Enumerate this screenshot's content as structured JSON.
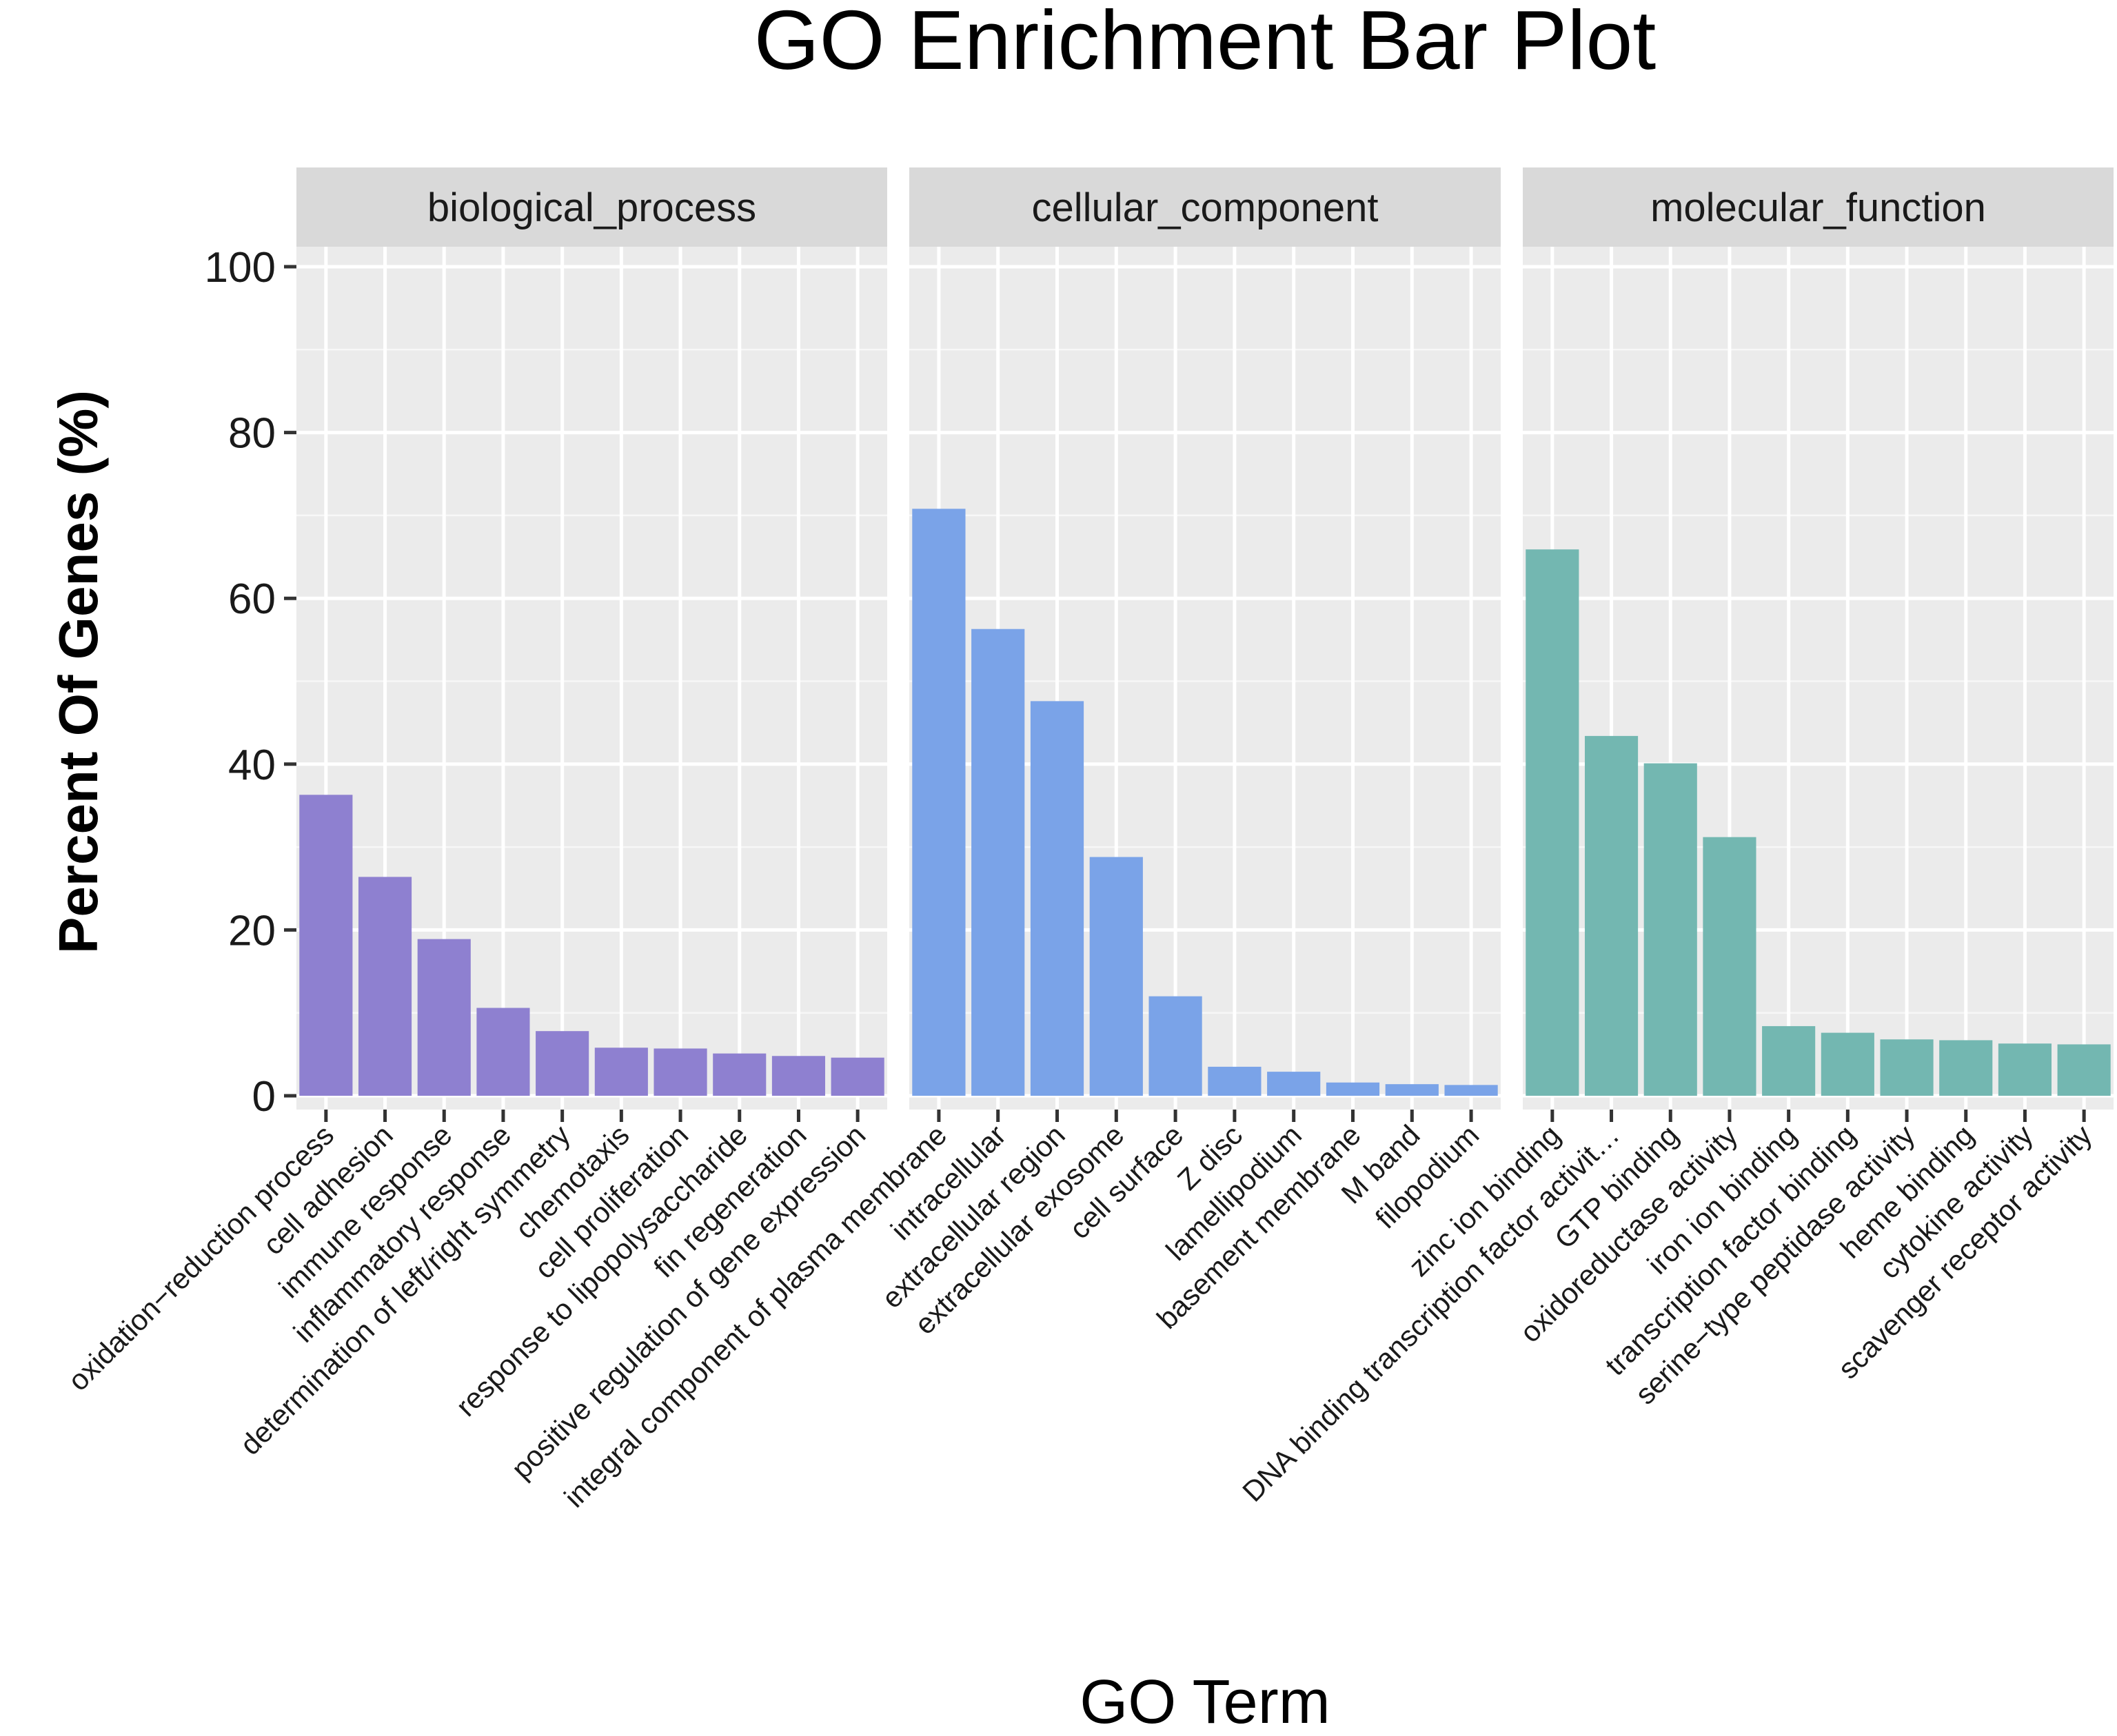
{
  "chart_data": {
    "type": "bar",
    "title": "GO Enrichment Bar Plot",
    "xlabel": "GO Term",
    "ylabel": "Percent Of Genes (%)",
    "ylim": [
      0,
      100
    ],
    "yticks": [
      0,
      20,
      40,
      60,
      80,
      100
    ],
    "ytick_labels": [
      "0",
      "20",
      "40",
      "60",
      "80",
      "100"
    ],
    "grid": true,
    "facets": [
      {
        "name": "biological_process",
        "color": "#8e80d0",
        "categories": [
          "oxidation−reduction process",
          "cell adhesion",
          "immune response",
          "inflammatory response",
          "determination of left/right symmetry",
          "chemotaxis",
          "cell proliferation",
          "response to lipopolysaccharide",
          "fin regeneration",
          "positive regulation of gene expression"
        ],
        "values": [
          36.3,
          26.4,
          18.9,
          10.6,
          7.8,
          5.8,
          5.7,
          5.1,
          4.8,
          4.6
        ]
      },
      {
        "name": "cellular_component",
        "color": "#7aa3e8",
        "categories": [
          "integral component of plasma membrane",
          "intracellular",
          "extracellular region",
          "extracellular exosome",
          "cell surface",
          "Z disc",
          "lamellipodium",
          "basement membrane",
          "M band",
          "filopodium"
        ],
        "values": [
          70.8,
          56.3,
          47.6,
          28.8,
          12.0,
          3.5,
          2.9,
          1.6,
          1.4,
          1.3
        ]
      },
      {
        "name": "molecular_function",
        "color": "#73b7b1",
        "categories": [
          "zinc ion binding",
          "DNA binding transcription factor activit…",
          "GTP binding",
          "oxidoreductase activity",
          "iron ion binding",
          "transcription factor binding",
          "serine−type peptidase activity",
          "heme binding",
          "cytokine activity",
          "scavenger receptor activity"
        ],
        "values": [
          65.9,
          43.4,
          40.1,
          31.2,
          8.4,
          7.6,
          6.8,
          6.7,
          6.3,
          6.2
        ]
      }
    ]
  }
}
